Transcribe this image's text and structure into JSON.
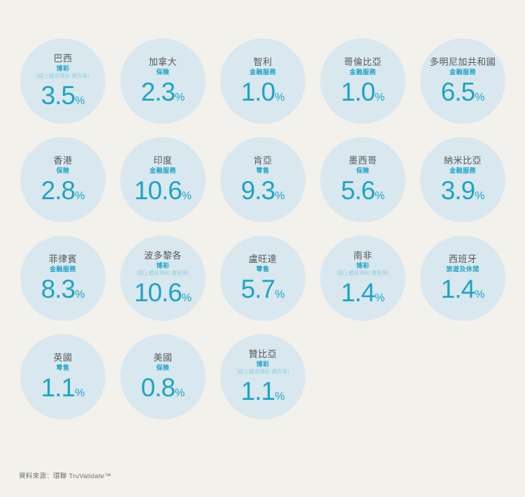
{
  "page": {
    "background_color": "#f2f1ec",
    "circle_color": "#d8e8ee",
    "accent_color": "#1fa3c9",
    "note_color": "#8fd0e0",
    "country_text_color": "#57585a"
  },
  "source_note": "資料來源：環聯 TruValidate™",
  "chart_data": {
    "type": "table",
    "visual": "circle-grid",
    "unit": "%",
    "percent_symbol": "%",
    "legend_position": "none",
    "grid": {
      "columns": 5,
      "rows": 4,
      "last_row_items": 3
    },
    "description": "Suspected digital fraud rate by country and most-affected industry",
    "items": [
      {
        "country": "巴西",
        "industry": "博彩",
        "note": "（線上體育博彩·撲克等）",
        "value": 3.5,
        "value_display": "3.5"
      },
      {
        "country": "加拿大",
        "industry": "保險",
        "value": 2.3,
        "value_display": "2.3"
      },
      {
        "country": "智利",
        "industry": "金融服務",
        "value": 1.0,
        "value_display": "1.0"
      },
      {
        "country": "哥倫比亞",
        "industry": "金融服務",
        "value": 1.0,
        "value_display": "1.0"
      },
      {
        "country": "多明尼加共和國",
        "industry": "金融服務",
        "value": 6.5,
        "value_display": "6.5"
      },
      {
        "country": "香港",
        "industry": "保險",
        "value": 2.8,
        "value_display": "2.8"
      },
      {
        "country": "印度",
        "industry": "金融服務",
        "value": 10.6,
        "value_display": "10.6"
      },
      {
        "country": "肯亞",
        "industry": "零售",
        "value": 9.3,
        "value_display": "9.3"
      },
      {
        "country": "墨西哥",
        "industry": "保險",
        "value": 5.6,
        "value_display": "5.6"
      },
      {
        "country": "納米比亞",
        "industry": "金融服務",
        "value": 3.9,
        "value_display": "3.9"
      },
      {
        "country": "菲律賓",
        "industry": "金融服務",
        "value": 8.3,
        "value_display": "8.3"
      },
      {
        "country": "波多黎各",
        "industry": "博彩",
        "note": "（線上體育博彩·撲克等）",
        "value": 10.6,
        "value_display": "10.6"
      },
      {
        "country": "盧旺達",
        "industry": "零售",
        "value": 5.7,
        "value_display": "5.7"
      },
      {
        "country": "南非",
        "industry": "博彩",
        "note": "（線上體育博彩·撲克等）",
        "value": 1.4,
        "value_display": "1.4"
      },
      {
        "country": "西班牙",
        "industry": "旅遊及休閒",
        "value": 1.4,
        "value_display": "1.4"
      },
      {
        "country": "英國",
        "industry": "零售",
        "value": 1.1,
        "value_display": "1.1"
      },
      {
        "country": "美國",
        "industry": "保險",
        "value": 0.8,
        "value_display": "0.8"
      },
      {
        "country": "贊比亞",
        "industry": "博彩",
        "note": "（線上體育博彩·撲克等）",
        "value": 1.1,
        "value_display": "1.1"
      }
    ]
  }
}
